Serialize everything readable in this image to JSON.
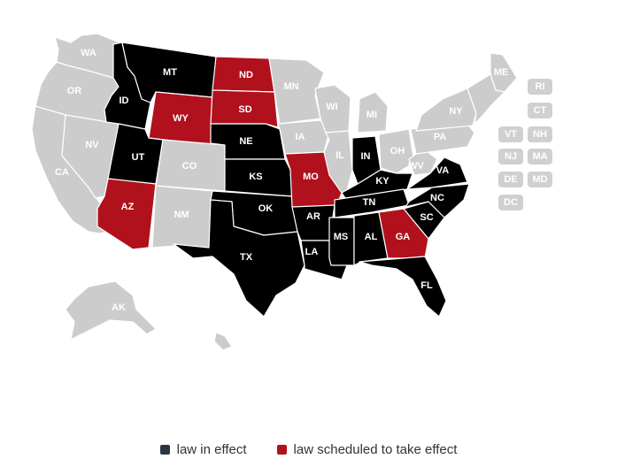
{
  "colors": {
    "in_effect": "#000000",
    "scheduled": "#b0111c",
    "none": "#cccccc",
    "legend_in_effect": "#2b3545",
    "legend_scheduled": "#b0111c"
  },
  "states": [
    {
      "abbr": "WA",
      "status": "none"
    },
    {
      "abbr": "OR",
      "status": "none"
    },
    {
      "abbr": "CA",
      "status": "none"
    },
    {
      "abbr": "NV",
      "status": "none"
    },
    {
      "abbr": "ID",
      "status": "in_effect"
    },
    {
      "abbr": "MT",
      "status": "in_effect"
    },
    {
      "abbr": "WY",
      "status": "scheduled"
    },
    {
      "abbr": "UT",
      "status": "in_effect"
    },
    {
      "abbr": "AZ",
      "status": "scheduled"
    },
    {
      "abbr": "CO",
      "status": "none"
    },
    {
      "abbr": "NM",
      "status": "none"
    },
    {
      "abbr": "ND",
      "status": "scheduled"
    },
    {
      "abbr": "SD",
      "status": "scheduled"
    },
    {
      "abbr": "NE",
      "status": "in_effect"
    },
    {
      "abbr": "KS",
      "status": "in_effect"
    },
    {
      "abbr": "OK",
      "status": "in_effect"
    },
    {
      "abbr": "TX",
      "status": "in_effect"
    },
    {
      "abbr": "MN",
      "status": "none"
    },
    {
      "abbr": "IA",
      "status": "none"
    },
    {
      "abbr": "MO",
      "status": "scheduled"
    },
    {
      "abbr": "AR",
      "status": "in_effect"
    },
    {
      "abbr": "LA",
      "status": "in_effect"
    },
    {
      "abbr": "WI",
      "status": "none"
    },
    {
      "abbr": "IL",
      "status": "none"
    },
    {
      "abbr": "MS",
      "status": "in_effect"
    },
    {
      "abbr": "MI",
      "status": "none"
    },
    {
      "abbr": "IN",
      "status": "in_effect"
    },
    {
      "abbr": "OH",
      "status": "none"
    },
    {
      "abbr": "KY",
      "status": "in_effect"
    },
    {
      "abbr": "TN",
      "status": "in_effect"
    },
    {
      "abbr": "AL",
      "status": "in_effect"
    },
    {
      "abbr": "GA",
      "status": "scheduled"
    },
    {
      "abbr": "FL",
      "status": "in_effect"
    },
    {
      "abbr": "SC",
      "status": "in_effect"
    },
    {
      "abbr": "NC",
      "status": "in_effect"
    },
    {
      "abbr": "VA",
      "status": "in_effect"
    },
    {
      "abbr": "WV",
      "status": "none"
    },
    {
      "abbr": "PA",
      "status": "none"
    },
    {
      "abbr": "NY",
      "status": "none"
    },
    {
      "abbr": "ME",
      "status": "none"
    },
    {
      "abbr": "AK",
      "status": "none"
    },
    {
      "abbr": "HI",
      "status": "none"
    }
  ],
  "small_states": [
    {
      "abbr": "RI"
    },
    {
      "abbr": "CT"
    },
    {
      "abbr": "VT"
    },
    {
      "abbr": "NH"
    },
    {
      "abbr": "NJ"
    },
    {
      "abbr": "MA"
    },
    {
      "abbr": "DE"
    },
    {
      "abbr": "MD"
    },
    {
      "abbr": "DC"
    }
  ],
  "legend": {
    "in_effect": "law in effect",
    "scheduled": "law scheduled to take effect"
  }
}
